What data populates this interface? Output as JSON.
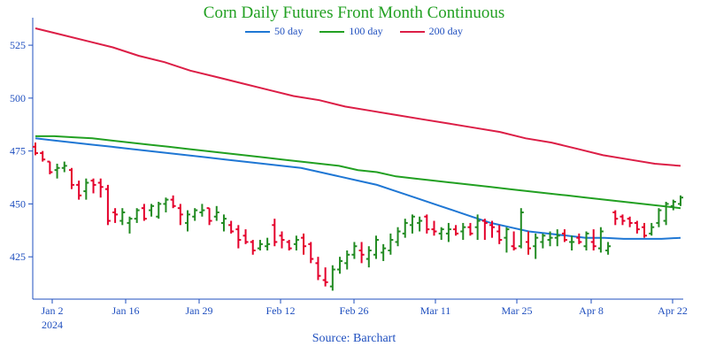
{
  "chart_data": {
    "type": "ohlc_line",
    "title": "Corn Daily Futures Front Month Continuous",
    "source": "Source: Barchart",
    "x_ticks": [
      "Jan 2",
      "Jan 16",
      "Jan 29",
      "Feb 12",
      "Feb 26",
      "Mar 11",
      "Mar 25",
      "Apr 8",
      "Apr 22"
    ],
    "x_year_label": "2024",
    "y_ticks": [
      425,
      450,
      475,
      500,
      525
    ],
    "ylim": [
      405,
      538
    ],
    "colors": {
      "up": "#228b22",
      "down": "#e4002b",
      "ma50": "#1f77d4",
      "ma100": "#22a022",
      "ma200": "#dc1e46",
      "axis": "#1f4fbf",
      "title": "#22a022"
    },
    "series": [
      {
        "name": "50 day",
        "color": "#1f77d4",
        "values": [
          481,
          480,
          479,
          478,
          477,
          476,
          475,
          474,
          473,
          472,
          471,
          470,
          469,
          468,
          467,
          465,
          463,
          461,
          459,
          456,
          453,
          450,
          447,
          444,
          441,
          439,
          437,
          436,
          435,
          434,
          434,
          433.5,
          433.5,
          433.5,
          434
        ]
      },
      {
        "name": "100 day",
        "color": "#22a022",
        "values": [
          482,
          482,
          481.5,
          481,
          480,
          479,
          478,
          477,
          476,
          475,
          474,
          473,
          472,
          471,
          470,
          469,
          468,
          466,
          465,
          463,
          462,
          461,
          460,
          459,
          458,
          457,
          456,
          455,
          454,
          453,
          452,
          451,
          450,
          449,
          448
        ]
      },
      {
        "name": "200 day",
        "color": "#dc1e46",
        "values": [
          533,
          530,
          527,
          524,
          520,
          517,
          513,
          510,
          507,
          504,
          501,
          499,
          496,
          494,
          492,
          490,
          488,
          486,
          484,
          481,
          479,
          476,
          473,
          471,
          469,
          468
        ]
      }
    ],
    "ohlc": [
      [
        477,
        479,
        473,
        474
      ],
      [
        474,
        475,
        470,
        471
      ],
      [
        470,
        470,
        464,
        465
      ],
      [
        466,
        469,
        462,
        467
      ],
      [
        467,
        470,
        465,
        468
      ],
      [
        466,
        467,
        457,
        459
      ],
      [
        459,
        461,
        452,
        454
      ],
      [
        456,
        462,
        452,
        460
      ],
      [
        461,
        462,
        455,
        459
      ],
      [
        460,
        462,
        453,
        458
      ],
      [
        457,
        459,
        440,
        442
      ],
      [
        446,
        448,
        441,
        445
      ],
      [
        442,
        448,
        440,
        446
      ],
      [
        441,
        444,
        436,
        443
      ],
      [
        443,
        448,
        441,
        447
      ],
      [
        448,
        450,
        442,
        443
      ],
      [
        447,
        450,
        444,
        449
      ],
      [
        444,
        451,
        443,
        450
      ],
      [
        450,
        453,
        446,
        452
      ],
      [
        452,
        454,
        448,
        449
      ],
      [
        448,
        450,
        440,
        445
      ],
      [
        441,
        447,
        437,
        445
      ],
      [
        444,
        448,
        442,
        447
      ],
      [
        446,
        450,
        444,
        447
      ],
      [
        448,
        448,
        440,
        442
      ],
      [
        444,
        449,
        442,
        446
      ],
      [
        441,
        445,
        437,
        443
      ],
      [
        440,
        442,
        436,
        437
      ],
      [
        438,
        440,
        429,
        433
      ],
      [
        435,
        438,
        431,
        432
      ],
      [
        432,
        433,
        426,
        428
      ],
      [
        429,
        433,
        428,
        431
      ],
      [
        430,
        434,
        428,
        431
      ],
      [
        440,
        443,
        430,
        432
      ],
      [
        435,
        437,
        429,
        433
      ],
      [
        432,
        433,
        428,
        429
      ],
      [
        431,
        435,
        428,
        433
      ],
      [
        434,
        436,
        426,
        430
      ],
      [
        431,
        432,
        422,
        424
      ],
      [
        422,
        425,
        414,
        416
      ],
      [
        414,
        420,
        411,
        413
      ],
      [
        411,
        421,
        409,
        419
      ],
      [
        419,
        425,
        417,
        423
      ],
      [
        422,
        428,
        419,
        426
      ],
      [
        426,
        432,
        424,
        430
      ],
      [
        428,
        432,
        422,
        426
      ],
      [
        424,
        430,
        420,
        428
      ],
      [
        426,
        435,
        424,
        433
      ],
      [
        427,
        431,
        423,
        429
      ],
      [
        428,
        436,
        426,
        433
      ],
      [
        432,
        439,
        430,
        437
      ],
      [
        436,
        443,
        434,
        441
      ],
      [
        440,
        445,
        436,
        444
      ],
      [
        441,
        444,
        437,
        442
      ],
      [
        444,
        445,
        436,
        438
      ],
      [
        438,
        442,
        435,
        437
      ],
      [
        436,
        439,
        433,
        438
      ],
      [
        436,
        441,
        432,
        438
      ],
      [
        438,
        440,
        435,
        436
      ],
      [
        437,
        441,
        433,
        439
      ],
      [
        439,
        441,
        435,
        436
      ],
      [
        439,
        445,
        433,
        442
      ],
      [
        442,
        443,
        433,
        441
      ],
      [
        440,
        442,
        434,
        439
      ],
      [
        437,
        440,
        431,
        433
      ],
      [
        434,
        439,
        427,
        438
      ],
      [
        430,
        437,
        428,
        429
      ],
      [
        430,
        448,
        429,
        446
      ],
      [
        432,
        437,
        426,
        429
      ],
      [
        430,
        436,
        424,
        434
      ],
      [
        432,
        436,
        429,
        435
      ],
      [
        433,
        437,
        430,
        434
      ],
      [
        434,
        438,
        430,
        435
      ],
      [
        436,
        438,
        432,
        433
      ],
      [
        432,
        435,
        428,
        432
      ],
      [
        434,
        436,
        431,
        432
      ],
      [
        430,
        437,
        428,
        436
      ],
      [
        432,
        438,
        428,
        430
      ],
      [
        429,
        439,
        427,
        437
      ],
      [
        428,
        432,
        426,
        430
      ],
      [
        446,
        447,
        440,
        443
      ],
      [
        444,
        445,
        440,
        442
      ],
      [
        443,
        444,
        439,
        441
      ],
      [
        441,
        442,
        436,
        438
      ],
      [
        439,
        441,
        434,
        435
      ],
      [
        436,
        441,
        435,
        439
      ],
      [
        441,
        448,
        439,
        447
      ],
      [
        442,
        451,
        440,
        450
      ],
      [
        449,
        452,
        447,
        451
      ],
      [
        450,
        454,
        449,
        453
      ]
    ]
  }
}
